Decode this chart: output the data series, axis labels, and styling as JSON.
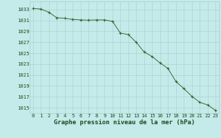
{
  "x": [
    0,
    1,
    2,
    3,
    4,
    5,
    6,
    7,
    8,
    9,
    10,
    11,
    12,
    13,
    14,
    15,
    16,
    17,
    18,
    19,
    20,
    21,
    22,
    23
  ],
  "y": [
    1033.2,
    1033.1,
    1032.5,
    1031.5,
    1031.4,
    1031.2,
    1031.1,
    1031.05,
    1031.1,
    1031.1,
    1030.85,
    1028.7,
    1028.4,
    1027.0,
    1025.2,
    1024.4,
    1023.2,
    1022.2,
    1019.8,
    1018.5,
    1017.1,
    1016.0,
    1015.5,
    1014.5
  ],
  "line_color": "#2d6a2d",
  "marker": "+",
  "bg_color": "#c5eaea",
  "grid_color": "#a8cccc",
  "xlabel": "Graphe pression niveau de la mer (hPa)",
  "xlabel_color": "#1a4a1a",
  "ylabel_ticks": [
    1015,
    1017,
    1019,
    1021,
    1023,
    1025,
    1027,
    1029,
    1031,
    1033
  ],
  "ylim": [
    1014.0,
    1034.5
  ],
  "xlim_left": -0.4,
  "xlim_right": 23.4,
  "xticks": [
    0,
    1,
    2,
    3,
    4,
    5,
    6,
    7,
    8,
    9,
    10,
    11,
    12,
    13,
    14,
    15,
    16,
    17,
    18,
    19,
    20,
    21,
    22,
    23
  ],
  "tick_color": "#1a4a1a",
  "tick_fontsize": 5.2,
  "xlabel_fontsize": 6.5,
  "linewidth": 0.7,
  "markersize": 2.8,
  "markeredgewidth": 0.8
}
